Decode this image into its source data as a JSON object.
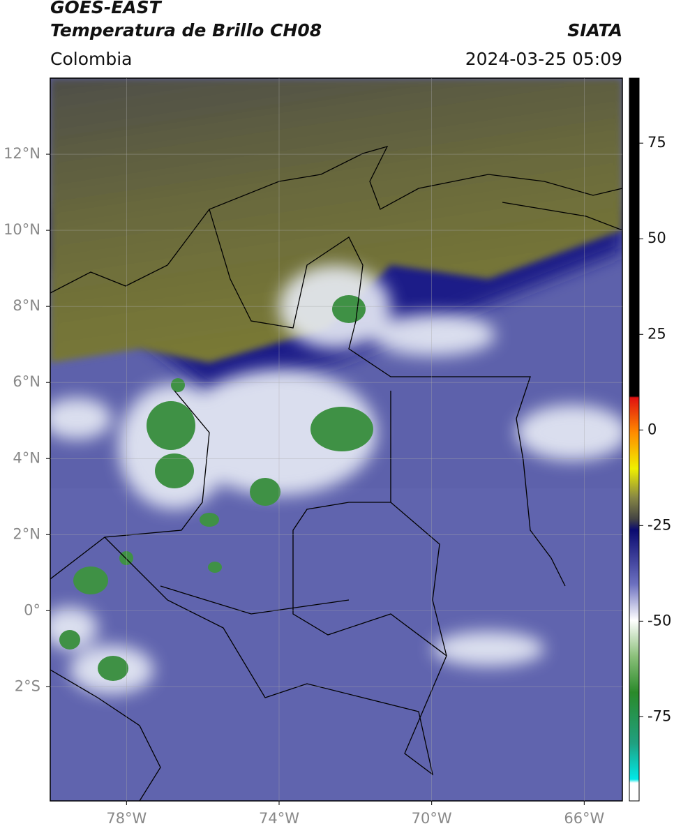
{
  "header": {
    "title": "GOES-EAST",
    "subtitle": "Temperatura de Brillo CH08",
    "source": "SIATA",
    "region": "Colombia",
    "datetime": "2024-03-25 05:09"
  },
  "map": {
    "xlim": [
      -80,
      -65
    ],
    "ylim": [
      -5,
      14
    ],
    "xticks": [
      {
        "value": -78,
        "label": "78°W"
      },
      {
        "value": -74,
        "label": "74°W"
      },
      {
        "value": -70,
        "label": "70°W"
      },
      {
        "value": -66,
        "label": "66°W"
      }
    ],
    "yticks": [
      {
        "value": 12,
        "label": "12°N"
      },
      {
        "value": 10,
        "label": "10°N"
      },
      {
        "value": 8,
        "label": "8°N"
      },
      {
        "value": 6,
        "label": "6°N"
      },
      {
        "value": 4,
        "label": "4°N"
      },
      {
        "value": 2,
        "label": "2°N"
      },
      {
        "value": 0,
        "label": "0°"
      },
      {
        "value": -2,
        "label": "2°S"
      }
    ],
    "grid": true
  },
  "colorbar": {
    "lim": [
      -97,
      92
    ],
    "ticks": [
      75,
      50,
      25,
      0,
      -25,
      -50,
      -75
    ]
  }
}
